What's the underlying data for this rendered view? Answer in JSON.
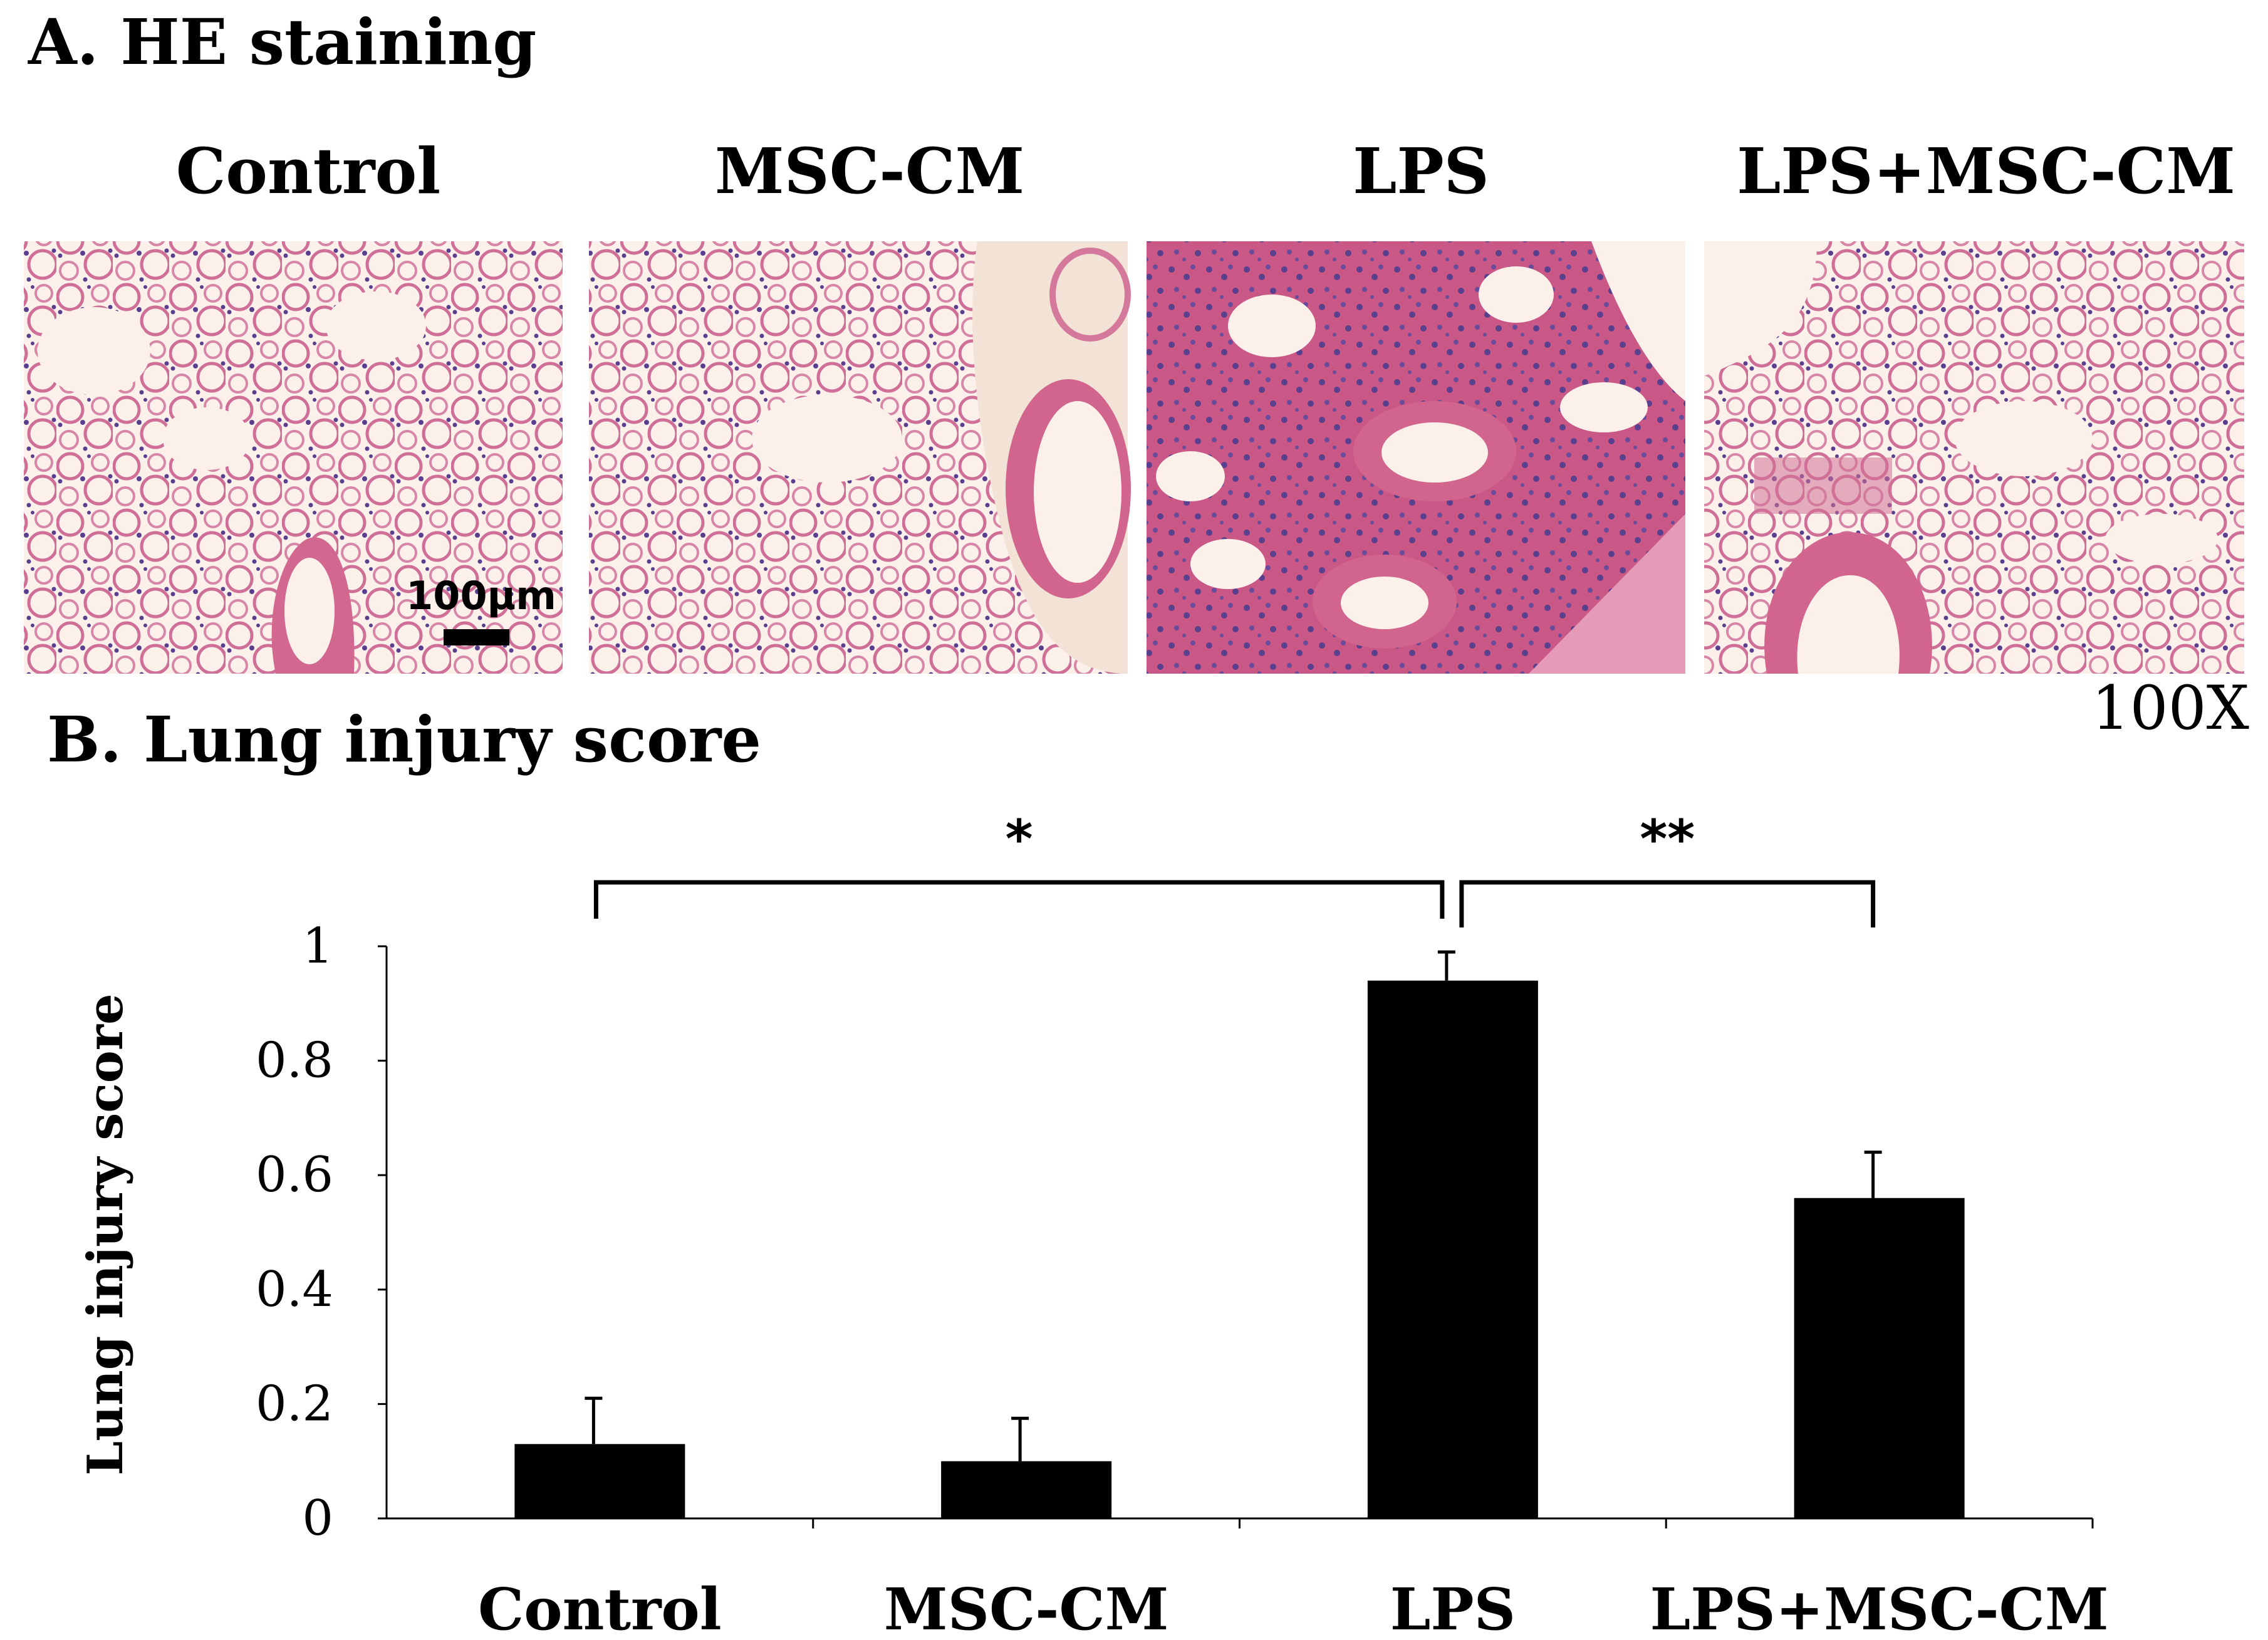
{
  "panel_a": {
    "title": "A. HE staining",
    "magnification": "100X",
    "scale_bar_label": "100μm",
    "columns": [
      "Control",
      "MSC-CM",
      "LPS",
      "LPS+MSC-CM"
    ]
  },
  "panel_b": {
    "title": "B. Lung injury score"
  },
  "chart_data": {
    "type": "bar",
    "title": "B. Lung injury score",
    "xlabel": "",
    "ylabel": "Lung injury score",
    "categories": [
      "Control",
      "MSC-CM",
      "LPS",
      "LPS+MSC-CM"
    ],
    "values": [
      0.13,
      0.1,
      0.94,
      0.56
    ],
    "errors": [
      0.08,
      0.075,
      0.05,
      0.08
    ],
    "ylim": [
      0,
      1
    ],
    "yticks": [
      0,
      0.2,
      0.4,
      0.6,
      0.8,
      1
    ],
    "ytick_labels": [
      "0",
      "0.2",
      "0.4",
      "0.6",
      "0.8",
      "1"
    ],
    "bar_color": "#000000",
    "grid": false,
    "significance": [
      {
        "from": "Control",
        "to": "LPS",
        "label": "*"
      },
      {
        "from": "LPS",
        "to": "LPS+MSC-CM",
        "label": "**"
      }
    ]
  },
  "colors": {
    "tissue_background": "#fbeee4",
    "tissue_pink": "#d97aa0",
    "tissue_dense": "#c2557e",
    "nuclei": "#5a3f8e"
  }
}
